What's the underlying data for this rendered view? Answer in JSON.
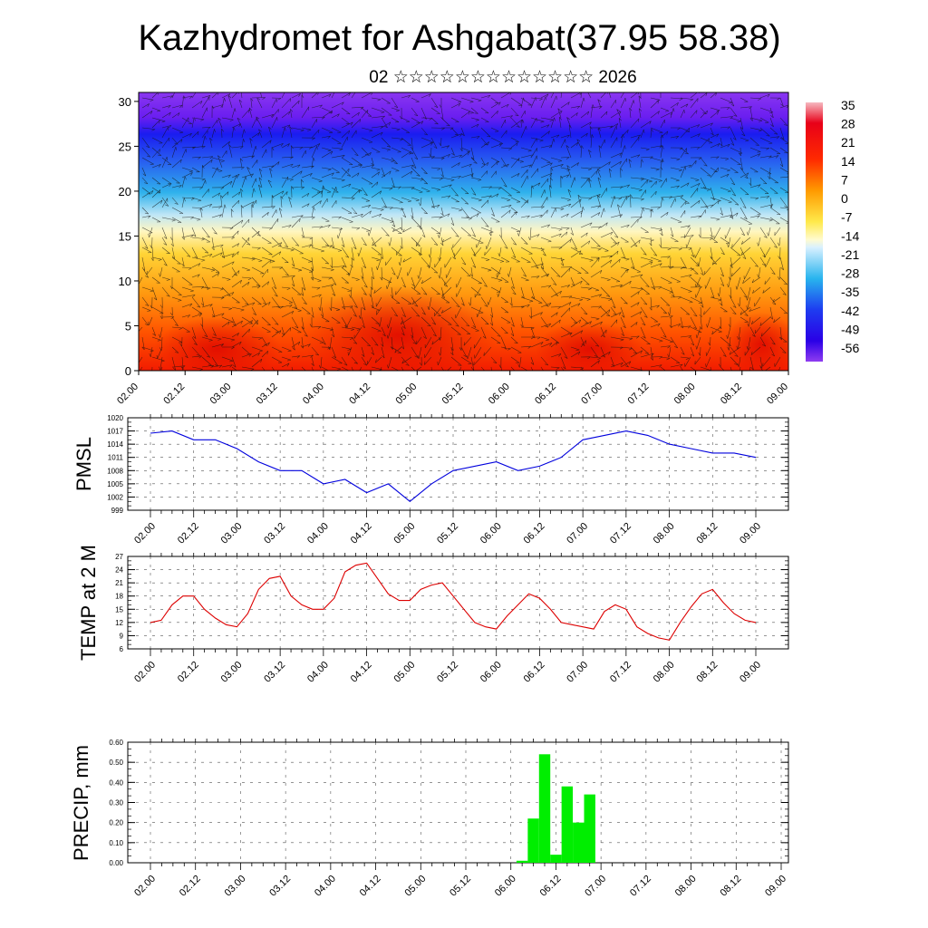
{
  "title": "Kazhydromet for Ashgabat(37.95 58.38)",
  "subtitle": "02 ☆☆☆☆☆☆☆☆☆☆☆☆☆ 2026",
  "time_ticks": [
    "02.00",
    "02.12",
    "03.00",
    "03.12",
    "04.00",
    "04.12",
    "05.00",
    "05.12",
    "06.00",
    "06.12",
    "07.00",
    "07.12",
    "08.00",
    "08.12",
    "09.00"
  ],
  "colors": {
    "pmsl_line": "#0000dd",
    "temp_line": "#dd0000",
    "precip_bar": "#00ee00"
  },
  "chart_data": [
    {
      "type": "heatmap",
      "name": "cross-section",
      "ylim": [
        0,
        31
      ],
      "yticks": [
        "0",
        "5",
        "10",
        "15",
        "20",
        "25",
        "30"
      ],
      "colorbar_labels": [
        "35",
        "28",
        "21",
        "14",
        "7",
        "0",
        "-7",
        "-14",
        "-21",
        "-28",
        "-35",
        "-42",
        "-49",
        "-56"
      ],
      "overlay": "wind vectors"
    },
    {
      "type": "line",
      "name": "pmsl",
      "ylabel": "PMSL",
      "ylim": [
        999,
        1020
      ],
      "yticks": [
        "1020",
        "1017",
        "1014",
        "1011",
        "1008",
        "1005",
        "1002",
        "999"
      ],
      "x_hours": [
        0,
        6,
        12,
        18,
        24,
        30,
        36,
        42,
        48,
        54,
        60,
        66,
        72,
        78,
        84,
        90,
        96,
        102,
        108,
        114,
        120,
        126,
        132,
        138,
        144,
        150,
        156,
        162,
        168
      ],
      "values": [
        1016.5,
        1017,
        1015,
        1015,
        1013,
        1010,
        1008,
        1008,
        1005,
        1006,
        1003,
        1005,
        1001,
        1005,
        1008,
        1009,
        1010,
        1008,
        1009,
        1011,
        1015,
        1016,
        1017,
        1016,
        1014,
        1013,
        1012,
        1012,
        1011
      ]
    },
    {
      "type": "line",
      "name": "temp2m",
      "ylabel": "TEMP at 2 M",
      "ylim": [
        6,
        27
      ],
      "yticks": [
        "27",
        "24",
        "21",
        "18",
        "15",
        "12",
        "9",
        "6"
      ],
      "x_hours": [
        0,
        3,
        6,
        9,
        12,
        15,
        18,
        21,
        24,
        27,
        30,
        33,
        36,
        39,
        42,
        45,
        48,
        51,
        54,
        57,
        60,
        63,
        66,
        69,
        72,
        75,
        78,
        81,
        84,
        87,
        90,
        93,
        96,
        99,
        102,
        105,
        108,
        111,
        114,
        117,
        120,
        123,
        126,
        129,
        132,
        135,
        138,
        141,
        144,
        147,
        150,
        153,
        156,
        159,
        162,
        165,
        168
      ],
      "values": [
        12,
        12.5,
        16,
        18,
        18,
        15,
        13,
        11.5,
        11,
        14,
        19.5,
        22,
        22.5,
        18,
        16,
        15,
        15,
        17.5,
        23.5,
        25,
        25.5,
        22,
        18.5,
        17,
        17,
        19.5,
        20.5,
        21,
        18,
        15,
        12,
        11,
        10.5,
        13.5,
        16,
        18.5,
        17.5,
        15,
        12,
        11.5,
        11,
        10.5,
        14.5,
        16,
        15,
        11,
        9.5,
        8.5,
        8,
        12,
        15.5,
        18.5,
        19.5,
        16.5,
        14,
        12.5,
        12
      ]
    },
    {
      "type": "bar",
      "name": "precip",
      "ylabel": "PRECIP, mm",
      "ylim": [
        0,
        0.6
      ],
      "yticks": [
        "0.60",
        "0.50",
        "0.40",
        "0.30",
        "0.20",
        "0.10",
        "0.00"
      ],
      "x_hours": [
        99,
        102,
        105,
        108,
        111,
        114,
        117,
        120
      ],
      "values": [
        0.01,
        0.22,
        0.54,
        0.04,
        0.38,
        0.2,
        0.34,
        0.0
      ]
    }
  ]
}
